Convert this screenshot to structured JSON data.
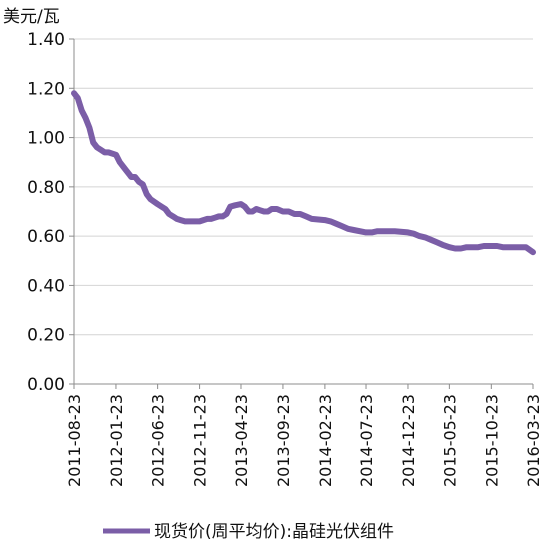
{
  "chart_data": {
    "type": "line",
    "unit_label": "美元/瓦",
    "title": "",
    "xlabel": "",
    "ylabel": "",
    "ylim": [
      0,
      1.4
    ],
    "y_ticks": [
      "0.00",
      "0.20",
      "0.40",
      "0.60",
      "0.80",
      "1.00",
      "1.20",
      "1.40"
    ],
    "x_ticks": [
      "2011-08-23",
      "2012-01-23",
      "2012-06-23",
      "2012-11-23",
      "2013-04-23",
      "2013-09-23",
      "2014-02-23",
      "2014-07-23",
      "2014-12-23",
      "2015-05-23",
      "2015-10-23",
      "2016-03-23"
    ],
    "grid": "horizontal",
    "legend_position": "bottom",
    "series": [
      {
        "name": "现货价(周平均价):晶硅光伏组件",
        "color": "#7B5EA7",
        "points": [
          [
            "2011-08-23",
            1.18
          ],
          [
            "2011-09-06",
            1.16
          ],
          [
            "2011-09-20",
            1.11
          ],
          [
            "2011-10-04",
            1.08
          ],
          [
            "2011-10-18",
            1.04
          ],
          [
            "2011-11-01",
            0.98
          ],
          [
            "2011-11-15",
            0.96
          ],
          [
            "2011-11-29",
            0.95
          ],
          [
            "2011-12-13",
            0.94
          ],
          [
            "2011-12-27",
            0.94
          ],
          [
            "2012-01-23",
            0.93
          ],
          [
            "2012-02-06",
            0.9
          ],
          [
            "2012-02-20",
            0.88
          ],
          [
            "2012-03-05",
            0.86
          ],
          [
            "2012-03-19",
            0.84
          ],
          [
            "2012-04-02",
            0.84
          ],
          [
            "2012-04-16",
            0.82
          ],
          [
            "2012-04-30",
            0.81
          ],
          [
            "2012-05-14",
            0.77
          ],
          [
            "2012-05-28",
            0.75
          ],
          [
            "2012-06-23",
            0.73
          ],
          [
            "2012-07-07",
            0.72
          ],
          [
            "2012-07-21",
            0.71
          ],
          [
            "2012-08-04",
            0.69
          ],
          [
            "2012-08-18",
            0.68
          ],
          [
            "2012-09-01",
            0.67
          ],
          [
            "2012-09-15",
            0.665
          ],
          [
            "2012-10-01",
            0.66
          ],
          [
            "2012-10-15",
            0.66
          ],
          [
            "2012-11-23",
            0.66
          ],
          [
            "2012-12-07",
            0.665
          ],
          [
            "2012-12-21",
            0.67
          ],
          [
            "2013-01-04",
            0.67
          ],
          [
            "2013-01-18",
            0.675
          ],
          [
            "2013-02-01",
            0.68
          ],
          [
            "2013-02-15",
            0.68
          ],
          [
            "2013-03-01",
            0.69
          ],
          [
            "2013-03-15",
            0.72
          ],
          [
            "2013-04-01",
            0.725
          ],
          [
            "2013-04-23",
            0.73
          ],
          [
            "2013-05-07",
            0.72
          ],
          [
            "2013-05-21",
            0.7
          ],
          [
            "2013-06-04",
            0.7
          ],
          [
            "2013-06-18",
            0.71
          ],
          [
            "2013-07-02",
            0.705
          ],
          [
            "2013-07-16",
            0.7
          ],
          [
            "2013-07-30",
            0.7
          ],
          [
            "2013-08-13",
            0.71
          ],
          [
            "2013-09-01",
            0.71
          ],
          [
            "2013-09-23",
            0.7
          ],
          [
            "2013-10-14",
            0.7
          ],
          [
            "2013-11-04",
            0.69
          ],
          [
            "2013-11-25",
            0.69
          ],
          [
            "2013-12-16",
            0.68
          ],
          [
            "2014-01-06",
            0.67
          ],
          [
            "2014-02-23",
            0.665
          ],
          [
            "2014-03-16",
            0.66
          ],
          [
            "2014-04-06",
            0.65
          ],
          [
            "2014-04-27",
            0.64
          ],
          [
            "2014-05-18",
            0.63
          ],
          [
            "2014-06-08",
            0.625
          ],
          [
            "2014-07-23",
            0.615
          ],
          [
            "2014-08-13",
            0.615
          ],
          [
            "2014-09-03",
            0.62
          ],
          [
            "2014-09-24",
            0.62
          ],
          [
            "2014-10-15",
            0.62
          ],
          [
            "2014-11-05",
            0.62
          ],
          [
            "2014-12-23",
            0.615
          ],
          [
            "2015-01-13",
            0.61
          ],
          [
            "2015-02-03",
            0.6
          ],
          [
            "2015-02-24",
            0.595
          ],
          [
            "2015-03-17",
            0.585
          ],
          [
            "2015-04-07",
            0.575
          ],
          [
            "2015-04-28",
            0.565
          ],
          [
            "2015-05-23",
            0.555
          ],
          [
            "2015-06-13",
            0.55
          ],
          [
            "2015-07-04",
            0.55
          ],
          [
            "2015-07-25",
            0.555
          ],
          [
            "2015-08-15",
            0.555
          ],
          [
            "2015-09-05",
            0.555
          ],
          [
            "2015-09-26",
            0.56
          ],
          [
            "2015-10-23",
            0.56
          ],
          [
            "2015-11-13",
            0.56
          ],
          [
            "2015-12-04",
            0.555
          ],
          [
            "2015-12-25",
            0.555
          ],
          [
            "2016-01-15",
            0.555
          ],
          [
            "2016-02-05",
            0.555
          ],
          [
            "2016-02-26",
            0.555
          ],
          [
            "2016-03-23",
            0.535
          ]
        ]
      }
    ]
  }
}
